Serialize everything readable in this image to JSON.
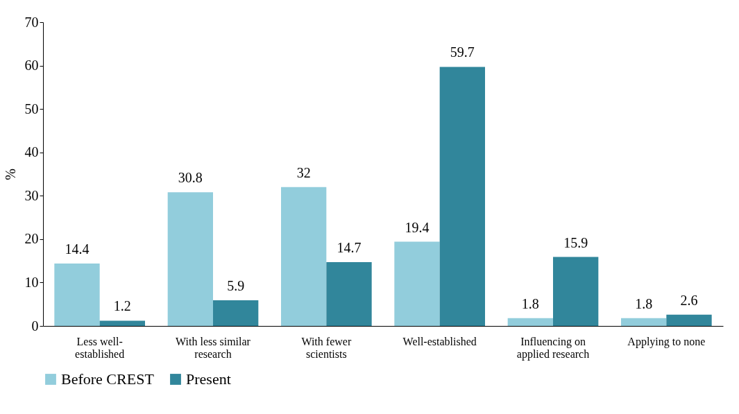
{
  "chart_data": {
    "type": "bar",
    "ylabel": "%",
    "categories": [
      "Less well-established",
      "With less similar research",
      "With fewer scientists",
      "Well-established",
      "Influencing on applied research",
      "Applying to none"
    ],
    "series": [
      {
        "name": "Before CREST",
        "color": "#92cddc",
        "values": [
          14.4,
          30.8,
          32,
          19.4,
          1.8,
          1.8
        ]
      },
      {
        "name": "Present",
        "color": "#31869b",
        "values": [
          1.2,
          5.9,
          14.7,
          59.7,
          15.9,
          2.6
        ]
      }
    ],
    "ylim": [
      0,
      70
    ],
    "yticks": [
      0,
      10,
      20,
      30,
      40,
      50,
      60,
      70
    ],
    "grid": false,
    "legend": "bottom",
    "data_labels": true
  }
}
